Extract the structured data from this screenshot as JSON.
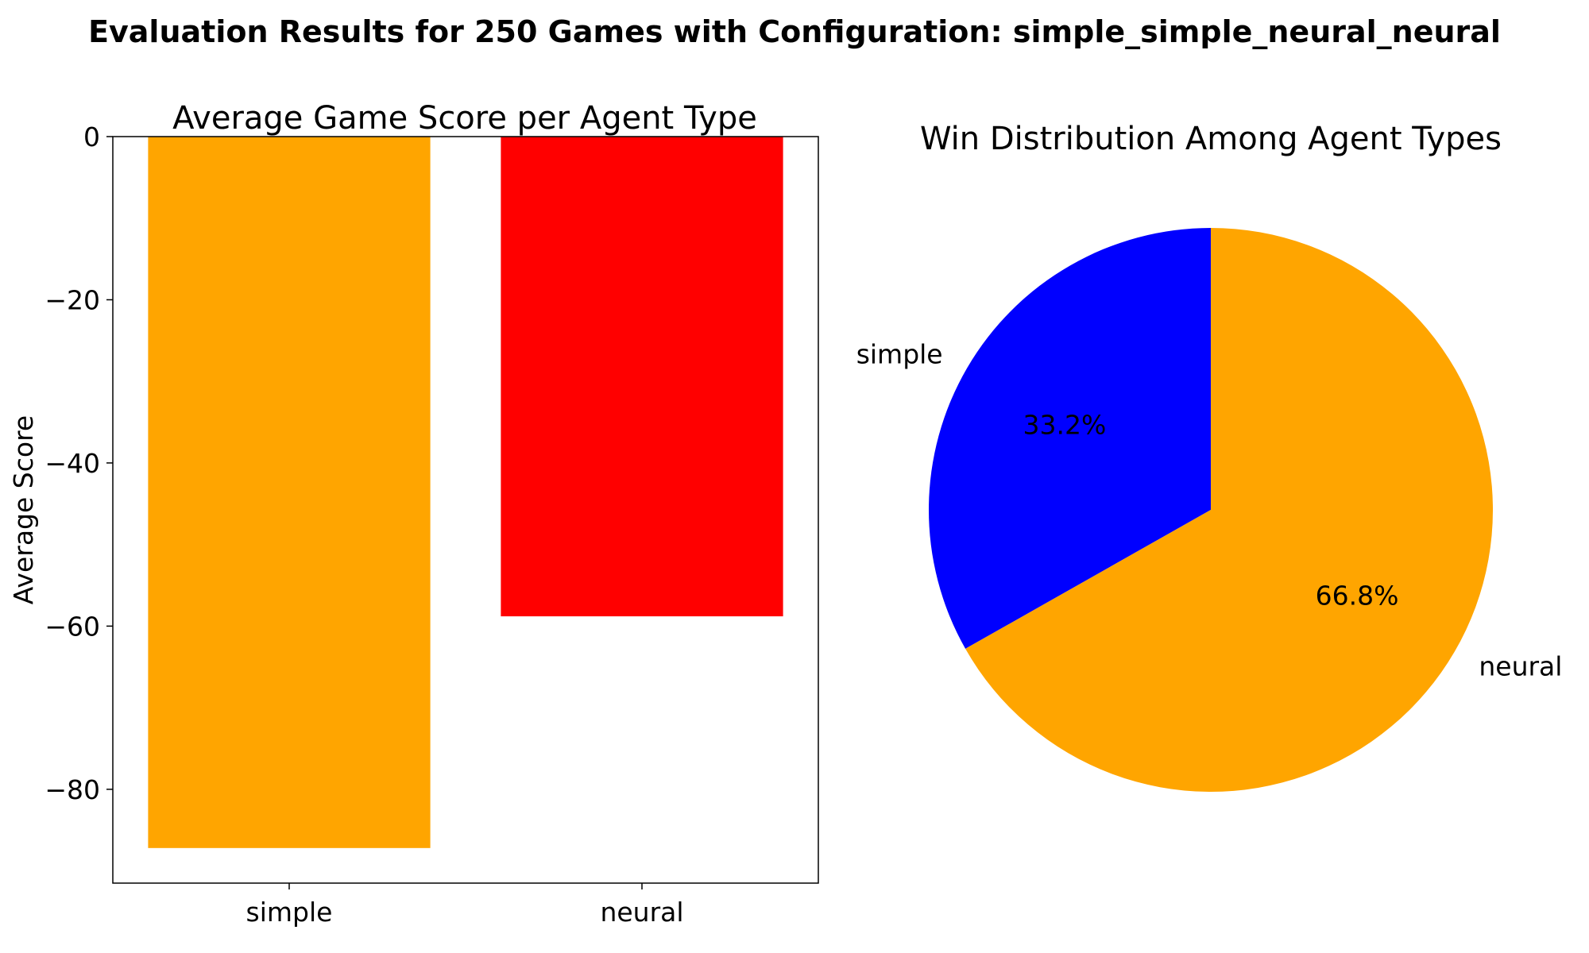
{
  "suptitle": "Evaluation Results for 250 Games with Configuration: simple_simple_neural_neural",
  "chart_data": [
    {
      "type": "bar",
      "title": "Average Game Score per Agent Type",
      "xlabel": "",
      "ylabel": "Average Score",
      "categories": [
        "simple",
        "neural"
      ],
      "values": [
        -87.2,
        -58.8
      ],
      "colors": [
        "#FFA500",
        "#FF0000"
      ],
      "ylim": [
        -91.5,
        0
      ],
      "yticks": [
        0,
        -20,
        -40,
        -60,
        -80
      ],
      "ytick_labels": [
        "0",
        "−20",
        "−40",
        "−60",
        "−80"
      ],
      "grid": false
    },
    {
      "type": "pie",
      "title": "Win Distribution Among Agent Types",
      "labels": [
        "simple",
        "neural"
      ],
      "values": [
        33.2,
        66.8
      ],
      "percent_labels": [
        "33.2%",
        "66.8%"
      ],
      "colors": [
        "#0000FF",
        "#FFA500"
      ],
      "start_angle": 90
    }
  ]
}
